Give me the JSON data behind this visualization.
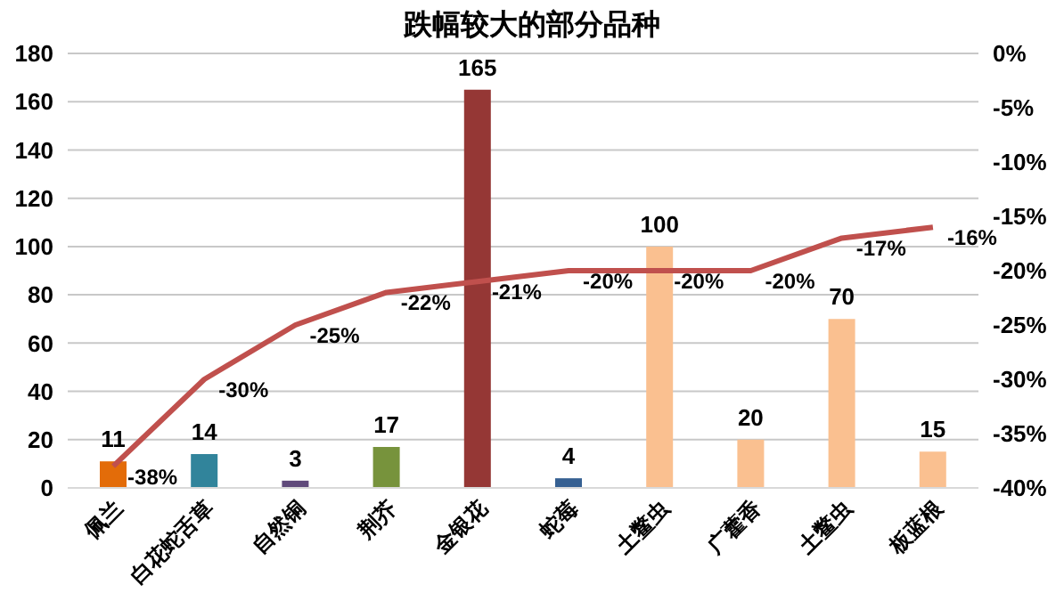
{
  "chart_data": {
    "type": "bar",
    "title": "跌幅较大的部分品种",
    "categories": [
      "佩兰",
      "白花蛇舌草",
      "自然铜",
      "荆芥",
      "金银花",
      "蛇莓",
      "土鳖虫",
      "广藿香",
      "土鳖虫",
      "板蓝根"
    ],
    "series": [
      {
        "colors": [
          "#e36c09",
          "#31849b",
          "#604a7b",
          "#77933c",
          "#953735",
          "#366092",
          "#fac090",
          "#fac090",
          "#fac090",
          "#fac090"
        ],
        "values": [
          11,
          14,
          3,
          17,
          165,
          4,
          100,
          20,
          70,
          15
        ],
        "value_labels": [
          "11",
          "14",
          "3",
          "17",
          "165",
          "4",
          "100",
          "20",
          "70",
          "15"
        ]
      },
      {
        "type": "line",
        "axis": "y2",
        "color": "#c0504d",
        "values": [
          -38,
          -30,
          -25,
          -22,
          -21,
          -20,
          -20,
          -20,
          -17,
          -16
        ],
        "value_labels": [
          "-38%",
          "-30%",
          "-25%",
          "-22%",
          "-21%",
          "-20%",
          "-20%",
          "-20%",
          "-17%",
          "-16%"
        ]
      }
    ],
    "ylim": [
      0,
      180
    ],
    "yticks": [
      0,
      20,
      40,
      60,
      80,
      100,
      120,
      140,
      160,
      180
    ],
    "y2lim": [
      -40,
      0
    ],
    "y2ticks": [
      {
        "value": -40,
        "label": "-40%"
      },
      {
        "value": -35,
        "label": "-35%"
      },
      {
        "value": -30,
        "label": "-30%"
      },
      {
        "value": -25,
        "label": "-25%"
      },
      {
        "value": -20,
        "label": "-20%"
      },
      {
        "value": -15,
        "label": "-15%"
      },
      {
        "value": -10,
        "label": "-10%"
      },
      {
        "value": -5,
        "label": "-5%"
      },
      {
        "value": 0,
        "label": "0%"
      }
    ],
    "grid": "y",
    "legend": false,
    "marker": "none",
    "line_style": "solid"
  }
}
